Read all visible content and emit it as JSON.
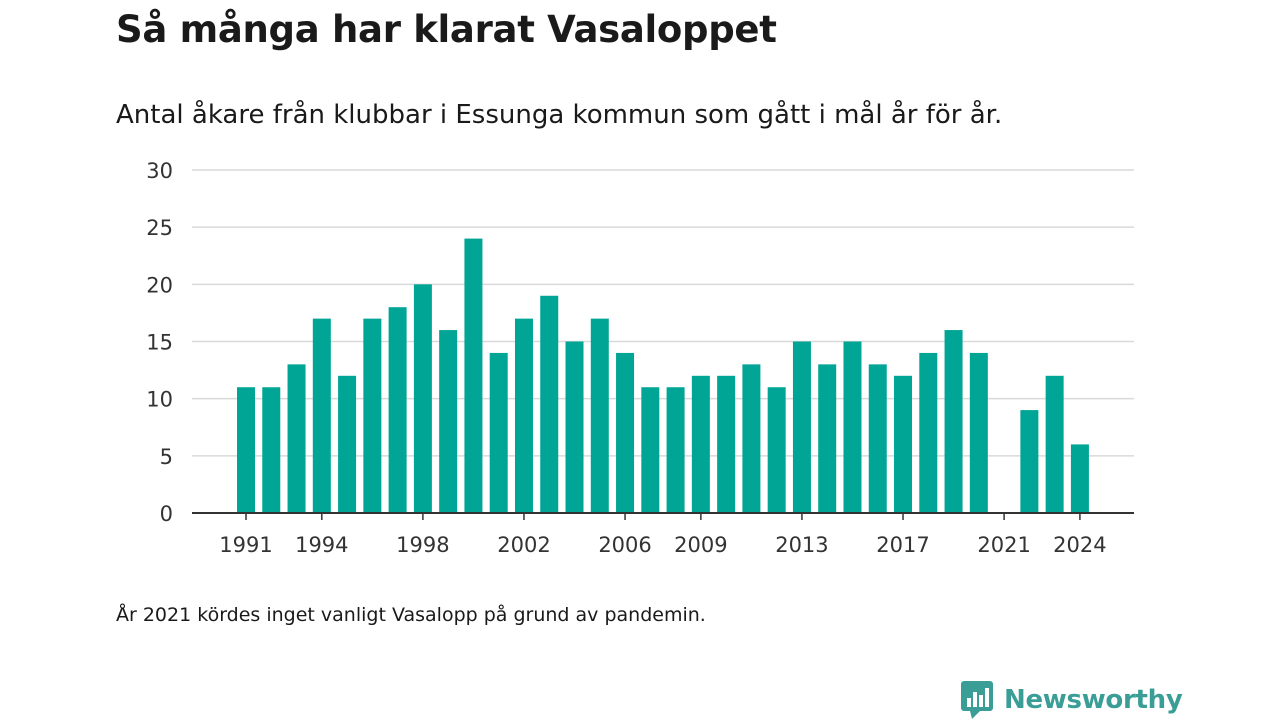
{
  "title": "Så många har klarat Vasaloppet",
  "subtitle": "Antal åkare från klubbar i Essunga kommun som gått i mål år för år.",
  "footnote": "År 2021 kördes inget vanligt Vasalopp på grund av pandemin.",
  "brand": {
    "name": "Newsworthy",
    "color": "#3a9e97",
    "icon": "newsworthy-logo-icon"
  },
  "colors": {
    "bar": "#00a596",
    "grid": "#d9d9d9",
    "axis": "#333333"
  },
  "chart_data": {
    "type": "bar",
    "x": [
      1991,
      1992,
      1993,
      1994,
      1995,
      1996,
      1997,
      1998,
      1999,
      2000,
      2001,
      2002,
      2003,
      2004,
      2005,
      2006,
      2007,
      2008,
      2009,
      2010,
      2011,
      2012,
      2013,
      2014,
      2015,
      2016,
      2017,
      2018,
      2019,
      2020,
      2021,
      2022,
      2023,
      2024
    ],
    "values": [
      11,
      11,
      13,
      17,
      12,
      17,
      18,
      20,
      16,
      24,
      14,
      17,
      19,
      15,
      17,
      14,
      11,
      11,
      12,
      12,
      13,
      11,
      15,
      13,
      15,
      13,
      12,
      14,
      16,
      14,
      0,
      9,
      12,
      6
    ],
    "x_ticks": [
      1991,
      1994,
      1998,
      2002,
      2006,
      2009,
      2013,
      2017,
      2021,
      2024
    ],
    "y_ticks": [
      0,
      5,
      10,
      15,
      20,
      25,
      30
    ],
    "ylim": [
      0,
      30
    ],
    "xlabel": "",
    "ylabel": "",
    "grid": true,
    "legend": "none"
  }
}
